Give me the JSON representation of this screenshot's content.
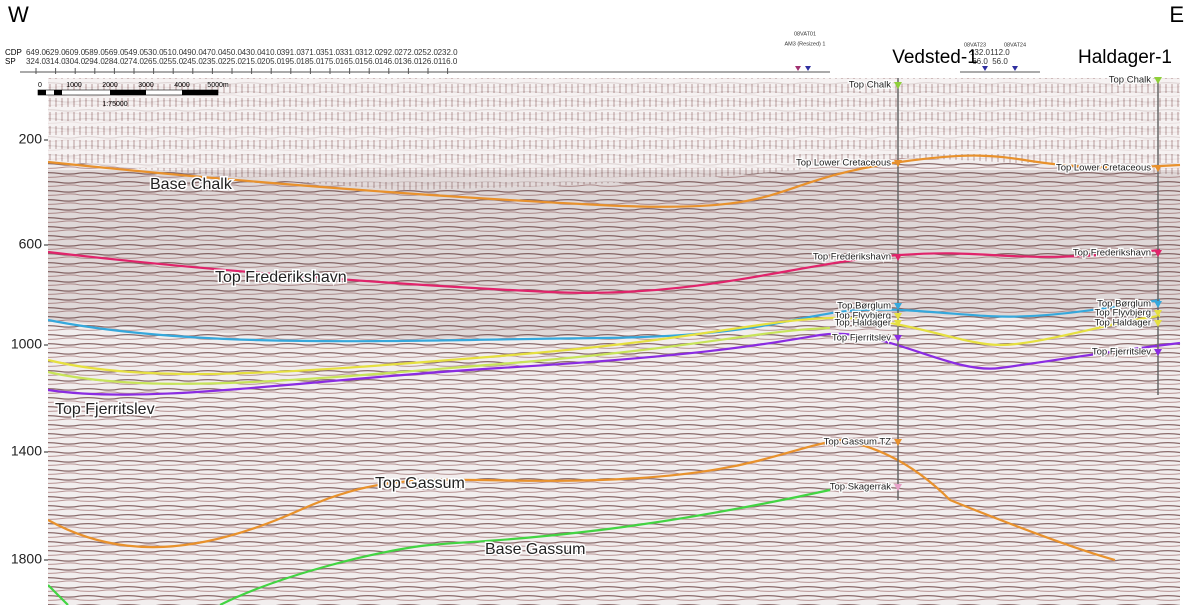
{
  "header": {
    "west": "W",
    "east": "E",
    "row_labels": [
      "CDP",
      "SP"
    ],
    "cdp": [
      "649.0",
      "629.0",
      "609.0",
      "589.0",
      "569.0",
      "549.0",
      "530.0",
      "510.0",
      "490.0",
      "470.0",
      "450.0",
      "430.0",
      "410.0",
      "391.0",
      "371.0",
      "351.0",
      "331.0",
      "312.0",
      "292.0",
      "272.0",
      "252.0",
      "232.0"
    ],
    "sp": [
      "324.0",
      "314.0",
      "304.0",
      "294.0",
      "284.0",
      "274.0",
      "265.0",
      "255.0",
      "245.0",
      "235.0",
      "225.0",
      "215.0",
      "205.0",
      "195.0",
      "185.0",
      "175.0",
      "165.0",
      "156.0",
      "146.0",
      "136.0",
      "126.0",
      "116.0"
    ],
    "tie_lines": [
      "08VAT01",
      "AM3 (Resized) 1",
      "08VAT23",
      "08VAT24"
    ],
    "right_cdp": [
      "132.0",
      "112.0"
    ],
    "right_sp": [
      "66.0",
      "56.0"
    ]
  },
  "scale_bar": {
    "ticks": [
      "0",
      "1000",
      "2000",
      "3000",
      "4000",
      "5000m"
    ],
    "ratio": "1:75000"
  },
  "depth_axis": [
    "200",
    "600",
    "1000",
    "1400",
    "1800"
  ],
  "wells": [
    {
      "name": "Vedsted-1",
      "markers": [
        "Top Chalk",
        "Top Lower Cretaceous",
        "Top Frederikshavn",
        "Top Børglum",
        "Top Flyvbjerg",
        "Top Haldager",
        "Top Fjerritslev",
        "Top Gassum TZ",
        "Top Skagerrak"
      ]
    },
    {
      "name": "Haldager-1",
      "markers": [
        "Top Chalk",
        "Top Lower Cretaceous",
        "Top Frederikshavn",
        "Top Børglum",
        "Top Flyvbjerg",
        "Top Haldager",
        "Top Fjerritslev"
      ]
    }
  ],
  "horizon_labels": [
    "Base Chalk",
    "Top Frederikshavn",
    "Top Fjerritslev",
    "Top Gassum",
    "Base Gassum"
  ]
}
